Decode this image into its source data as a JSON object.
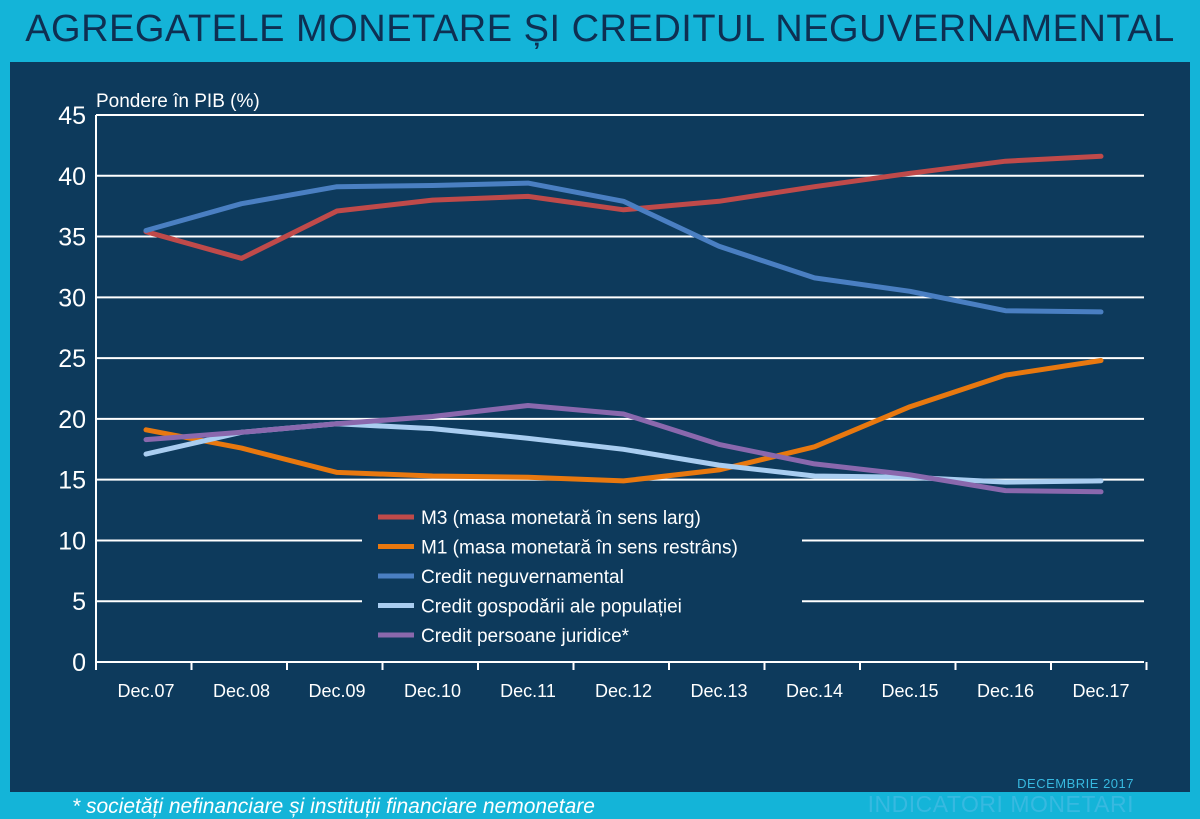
{
  "header": {
    "title": "AGREGATELE MONETARE ȘI CREDITUL NEGUVERNAMENTAL"
  },
  "footer": {
    "footnote": "* societăți nefinanciare și instituții financiare nemonetare",
    "brand_date": "DECEMBRIE 2017",
    "brand_name": "INDICATORI MONETARI"
  },
  "colors": {
    "background": "#0d3a5c",
    "frame": "#14b4d8",
    "title": "#0e2f52",
    "grid": "#ffffff"
  },
  "chart_data": {
    "type": "line",
    "title": "AGREGATELE MONETARE ȘI CREDITUL NEGUVERNAMENTAL",
    "ylabel": "Pondere în PIB (%)",
    "xlabel": "",
    "ylim": [
      0,
      45
    ],
    "yticks": [
      0,
      5,
      10,
      15,
      20,
      25,
      30,
      35,
      40,
      45
    ],
    "grid": true,
    "legend_position": "bottom-center",
    "categories": [
      "Dec.07",
      "Dec.08",
      "Dec.09",
      "Dec.10",
      "Dec.11",
      "Dec.12",
      "Dec.13",
      "Dec.14",
      "Dec.15",
      "Dec.16",
      "Dec.17"
    ],
    "series": [
      {
        "name": "M3 (masa monetară în sens larg)",
        "color": "#bf4a4a",
        "values": [
          35.4,
          33.2,
          37.1,
          38.0,
          38.3,
          37.2,
          37.9,
          39.1,
          40.2,
          41.2,
          41.6
        ]
      },
      {
        "name": "M1 (masa monetară în sens restrâns)",
        "color": "#e8780f",
        "values": [
          19.1,
          17.6,
          15.6,
          15.3,
          15.2,
          14.9,
          15.8,
          17.7,
          21.0,
          23.6,
          24.8
        ]
      },
      {
        "name": "Credit neguvernamental",
        "color": "#4a7fc2",
        "values": [
          35.5,
          37.7,
          39.1,
          39.2,
          39.4,
          37.9,
          34.2,
          31.6,
          30.5,
          28.9,
          28.8
        ]
      },
      {
        "name": "Credit gospodării ale populației",
        "color": "#a9cdf0",
        "values": [
          17.1,
          18.9,
          19.6,
          19.2,
          18.4,
          17.5,
          16.2,
          15.3,
          15.2,
          14.8,
          14.9
        ]
      },
      {
        "name": "Credit persoane juridice*",
        "color": "#8a68ad",
        "values": [
          18.3,
          18.9,
          19.6,
          20.2,
          21.1,
          20.4,
          17.9,
          16.3,
          15.4,
          14.1,
          14.0
        ]
      }
    ]
  }
}
